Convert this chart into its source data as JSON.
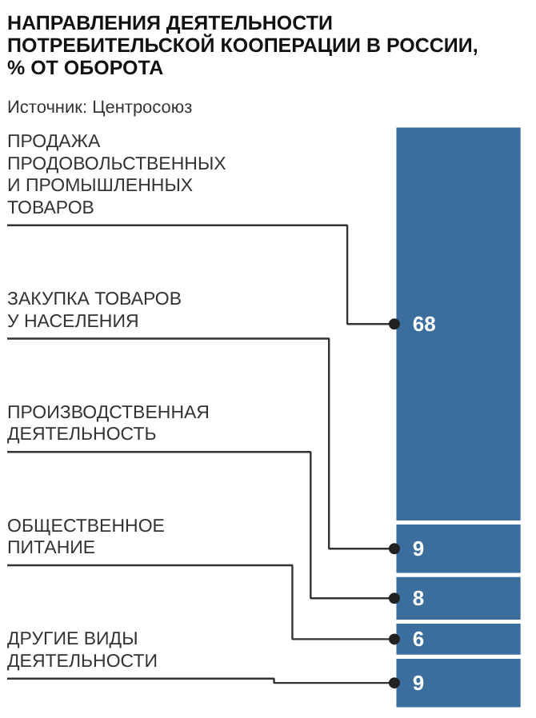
{
  "chart_data": {
    "type": "bar",
    "stacked": true,
    "data_labels": true,
    "title": "НАПРАВЛЕНИЯ ДЕЯТЕЛЬНОСТИ ПОТРЕБИТЕЛЬСКОЙ КООПЕРАЦИИ В РОССИИ, % ОТ ОБОРОТА",
    "annotations": [
      "Источник: Центросоюз"
    ],
    "categories": [
      null
    ],
    "series": [
      {
        "name": "ДРУГИЕ ВИДЫ ДЕЯТЕЛЬНОСТИ",
        "color": "#3b6e9c",
        "values": [
          9
        ]
      },
      {
        "name": "ОБЩЕСТВЕННОЕ ПИТАНИЕ",
        "color": "#3b6e9c",
        "values": [
          6
        ]
      },
      {
        "name": "ПРОИЗВОДСТВЕННАЯ ДЕЯТЕЛЬНОСТЬ",
        "color": "#3b6e9c",
        "values": [
          8
        ]
      },
      {
        "name": "ЗАКУПКА ТОВАРОВ У НАСЕЛЕНИЯ",
        "color": "#3b6e9c",
        "values": [
          9
        ]
      },
      {
        "name": "ПРОДАЖА ПРОДОВОЛЬСТВЕННЫХ И ПРОМЫШЛЕННЫХ ТОВАРОВ",
        "color": "#3b6e9c",
        "values": [
          68
        ]
      }
    ]
  }
}
